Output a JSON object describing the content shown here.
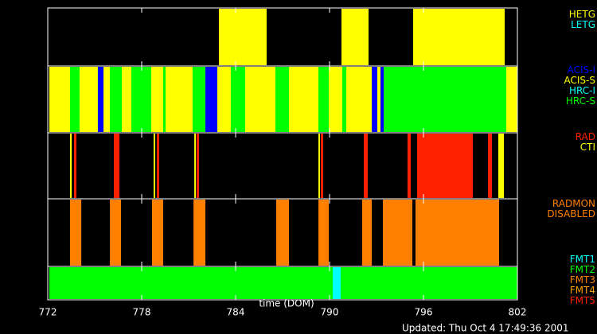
{
  "chart_data": {
    "type": "timeline",
    "x_label": "time (DOM)",
    "footer": "Updated: Thu Oct  4 17:49:36 2001",
    "xlim": [
      772,
      802
    ],
    "xticks": [
      772,
      778,
      784,
      790,
      796,
      802
    ],
    "panels": [
      {
        "series": [
          {
            "name": "HETG",
            "color": "#ffff00",
            "intervals": [
              [
                782.93,
                785.98
              ],
              [
                790.76,
                792.49
              ],
              [
                795.34,
                801.19
              ]
            ]
          },
          {
            "name": "LETG",
            "color": "#00ffff",
            "intervals": []
          }
        ]
      },
      {
        "series": [
          {
            "name": "ACIS-I",
            "color": "#0000ff",
            "intervals": [
              [
                775.2,
                775.56
              ],
              [
                782.07,
                782.83
              ],
              [
                792.7,
                793.05
              ],
              [
                793.25,
                793.46
              ]
            ]
          },
          {
            "name": "ACIS-S",
            "color": "#ffff00",
            "intervals": [
              [
                772.1,
                802
              ]
            ]
          },
          {
            "name": "HRC-I",
            "color": "#00ffff",
            "intervals": []
          },
          {
            "name": "HRC-S",
            "color": "#00ff00",
            "intervals": [
              [
                773.42,
                774.03
              ],
              [
                775.97,
                776.73
              ],
              [
                777.34,
                778.61
              ],
              [
                779.37,
                779.53
              ],
              [
                781.25,
                782.07
              ],
              [
                783.69,
                784.61
              ],
              [
                786.54,
                787.41
              ],
              [
                789.29,
                789.95
              ],
              [
                790.81,
                791.07
              ],
              [
                793.46,
                801.29
              ]
            ]
          }
        ]
      },
      {
        "series": [
          {
            "name": "RAD",
            "color": "#ff2000",
            "intervals": [
              [
                773.68,
                773.83
              ],
              [
                776.22,
                776.58
              ],
              [
                778.97,
                779.12
              ],
              [
                781.51,
                781.66
              ],
              [
                789.44,
                789.59
              ],
              [
                792.19,
                792.44
              ],
              [
                794.98,
                795.19
              ],
              [
                795.59,
                799.15
              ],
              [
                800.12,
                800.37
              ]
            ]
          },
          {
            "name": "CTI",
            "color": "#ffff00",
            "intervals": [
              [
                773.42,
                773.53
              ],
              [
                778.76,
                778.86
              ],
              [
                781.36,
                781.46
              ],
              [
                789.29,
                789.39
              ],
              [
                800.78,
                801.14
              ]
            ]
          }
        ]
      },
      {
        "series": [
          {
            "name": "RADMON DISABLED",
            "color": "#ff8000",
            "intervals": [
              [
                773.42,
                774.14
              ],
              [
                775.97,
                776.68
              ],
              [
                778.66,
                779.37
              ],
              [
                781.31,
                782.07
              ],
              [
                786.59,
                787.41
              ],
              [
                789.29,
                789.95
              ],
              [
                792.08,
                792.7
              ],
              [
                793.41,
                795.29
              ],
              [
                795.49,
                800.83
              ]
            ]
          }
        ]
      },
      {
        "series": [
          {
            "name": "FMT1",
            "color": "#00ffff",
            "intervals": [
              [
                790.2,
                790.71
              ]
            ]
          },
          {
            "name": "FMT2",
            "color": "#00ff00",
            "intervals": [
              [
                772.1,
                802
              ]
            ]
          },
          {
            "name": "FMT3",
            "color": "#ff8000",
            "intervals": []
          },
          {
            "name": "FMT4",
            "color": "#ffa000",
            "intervals": []
          },
          {
            "name": "FMT5",
            "color": "#ff2000",
            "intervals": []
          }
        ]
      }
    ]
  }
}
